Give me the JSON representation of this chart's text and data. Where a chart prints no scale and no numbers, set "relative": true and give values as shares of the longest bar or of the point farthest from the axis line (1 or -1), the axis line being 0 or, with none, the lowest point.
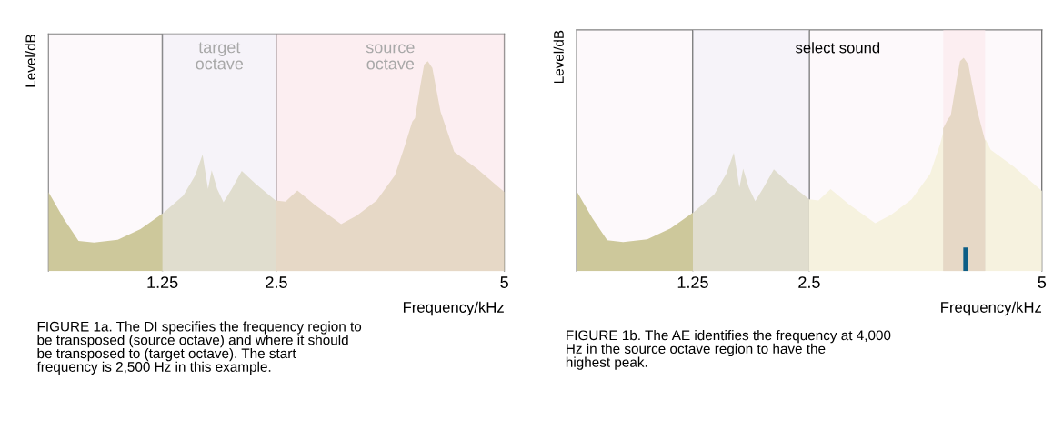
{
  "chart_data": [
    {
      "type": "area",
      "relative": true,
      "xlim": [
        0,
        5
      ],
      "xticks": [
        1.25,
        2.5,
        5
      ],
      "xlabel": "Frequency/kHz",
      "ylabel": "Level/dB",
      "grid": "x",
      "x": [
        0,
        0.17,
        0.33,
        0.5,
        0.76,
        1.01,
        1.26,
        1.48,
        1.61,
        1.69,
        1.75,
        1.79,
        1.85,
        1.92,
        2.01,
        2.12,
        2.27,
        2.49,
        2.6,
        2.73,
        2.93,
        3.21,
        3.38,
        3.6,
        3.8,
        3.91,
        3.99,
        4.02,
        4.08,
        4.12,
        4.16,
        4.21,
        4.3,
        4.45,
        4.7,
        5
      ],
      "series": [
        {
          "color": "#cdc89b",
          "values": [
            0.376,
            0.248,
            0.144,
            0.136,
            0.149,
            0.2,
            0.277,
            0.36,
            0.456,
            0.555,
            0.392,
            0.48,
            0.392,
            0.328,
            0.392,
            0.477,
            0.416,
            0.336,
            0.331,
            0.384,
            0.312,
            0.224,
            0.264,
            0.336,
            0.456,
            0.6,
            0.712,
            0.728,
            0.888,
            0.984,
            1.0,
            0.968,
            0.76,
            0.568,
            0.488,
            0.376
          ]
        }
      ],
      "bands": [
        {
          "axis": "x",
          "from": 1.25,
          "to": 2.5,
          "label": "target\noctave",
          "color": "#f1eef8"
        },
        {
          "axis": "x",
          "from": 2.5,
          "to": 5,
          "label": "source\noctave",
          "color": "#fce6ea"
        }
      ],
      "annotations": [
        "FIGURE 1a. The DI specifies the frequency region to\nbe transposed (source octave) and where it should\nbe transposed to (target octave). The start\nfrequency is 2,500 Hz in this example."
      ]
    },
    {
      "type": "area",
      "relative": true,
      "xlim": [
        0,
        5
      ],
      "xticks": [
        1.25,
        2.5,
        5
      ],
      "xlabel": "Frequency/kHz",
      "ylabel": "Level/dB",
      "grid": "x",
      "series": [
        {
          "color": "#f6f2df",
          "x": [
            2.5,
            2.6,
            2.73,
            2.93,
            3.21,
            3.38,
            3.6,
            3.8,
            3.91,
            3.94,
            4.1,
            4.39,
            4.45,
            4.7,
            5
          ],
          "values": [
            0.336,
            0.331,
            0.384,
            0.312,
            0.224,
            0.264,
            0.336,
            0.456,
            0.6,
            0.65,
            null,
            0.62,
            0.568,
            0.488,
            0.376
          ]
        },
        {
          "color": "#cdc89b",
          "x": [
            0,
            0.17,
            0.33,
            0.5,
            0.76,
            1.01,
            1.26,
            1.48,
            1.61,
            1.69,
            1.75,
            1.79,
            1.85,
            1.92,
            2.01,
            2.12,
            2.27,
            2.5
          ],
          "values": [
            0.376,
            0.248,
            0.144,
            0.136,
            0.149,
            0.2,
            0.277,
            0.36,
            0.456,
            0.555,
            0.392,
            0.48,
            0.392,
            0.328,
            0.392,
            0.477,
            0.416,
            0.336
          ]
        },
        {
          "color": "#cdc89b",
          "x": [
            3.94,
            3.99,
            4.02,
            4.08,
            4.12,
            4.16,
            4.21,
            4.3,
            4.39
          ],
          "values": [
            0.67,
            0.712,
            0.728,
            0.888,
            0.984,
            1.0,
            0.968,
            0.76,
            0.61
          ]
        },
        {
          "type": "bar",
          "color": "#0d5e86",
          "x": [
            4.18
          ],
          "values": [
            0.11
          ]
        }
      ],
      "bands": [
        {
          "axis": "x",
          "from": 1.25,
          "to": 2.5,
          "label": null,
          "color": "#f1eef8"
        },
        {
          "axis": "x",
          "from": 3.94,
          "to": 4.39,
          "label": null,
          "color": "#fce6ea"
        }
      ],
      "annotations": [
        "select sound",
        "FIGURE 1b. The AE identifies the frequency at 4,000\nHz in the source octave region to have the\nhighest peak."
      ]
    }
  ]
}
